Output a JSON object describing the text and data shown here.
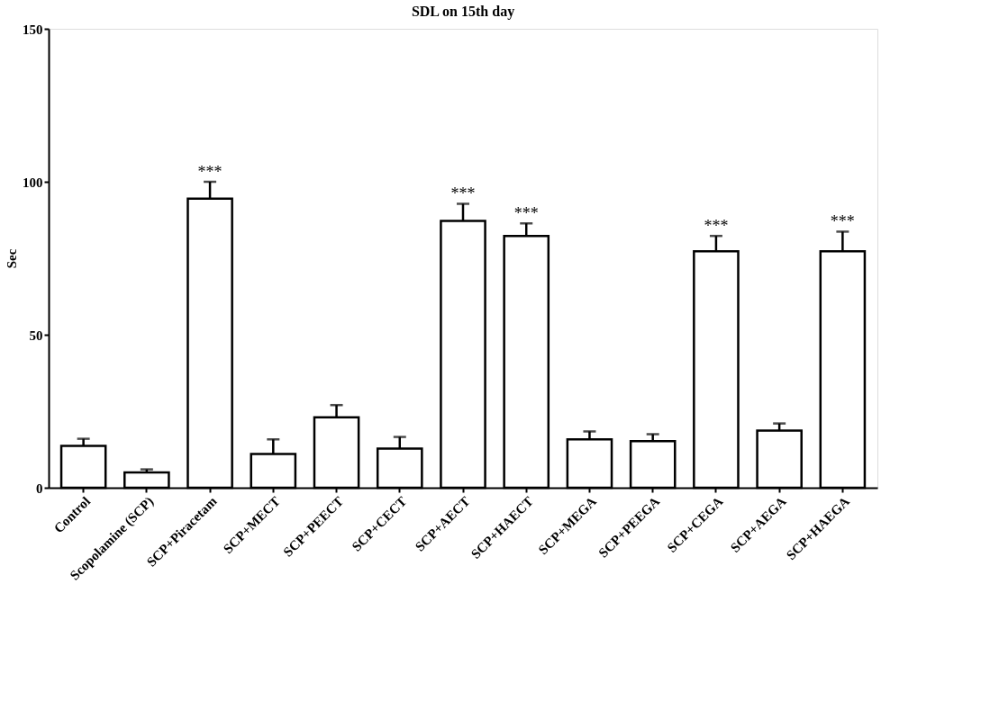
{
  "chart_data": {
    "type": "bar",
    "title": "SDL on 15th day",
    "ylabel": "Sec",
    "categories": [
      "Control",
      "Scopolamine (SCP)",
      "SCP+Piracetam",
      "SCP+MECT",
      "SCP+PEECT",
      "SCP+CECT",
      "SCP+AECT",
      "SCP+HAECT",
      "SCP+MEGA",
      "SCP+PEEGA",
      "SCP+CEGA",
      "SCP+AEGA",
      "SCP+HAEGA"
    ],
    "values": [
      13.7,
      5,
      94.5,
      11,
      23,
      12.8,
      87.2,
      82.3,
      15.8,
      15.2,
      77.3,
      18.7,
      77.3
    ],
    "errors": [
      [
        13.7,
        16
      ],
      [
        5,
        6
      ],
      [
        94.5,
        100
      ],
      [
        11,
        15.8
      ],
      [
        23,
        27
      ],
      [
        12.8,
        16.6
      ],
      [
        87.2,
        92.8
      ],
      [
        82.3,
        86.4
      ],
      [
        15.8,
        18.4
      ],
      [
        15.2,
        17.5
      ],
      [
        77.3,
        82.3
      ],
      [
        18.7,
        21
      ],
      [
        77.3,
        83.7
      ]
    ],
    "color": "#ffffff",
    "ylim": [
      0,
      150
    ],
    "yticks": [
      0,
      50,
      100,
      150
    ],
    "grid": false,
    "annotations": [
      {
        "text": "***",
        "x": "SCP+Piracetam",
        "y": 100
      },
      {
        "text": "***",
        "x": "SCP+AECT",
        "y": 92.8
      },
      {
        "text": "***",
        "x": "SCP+HAECT",
        "y": 86.4
      },
      {
        "text": "***",
        "x": "SCP+CEGA",
        "y": 82.3
      },
      {
        "text": "***",
        "x": "SCP+HAEGA",
        "y": 83.7
      }
    ]
  }
}
